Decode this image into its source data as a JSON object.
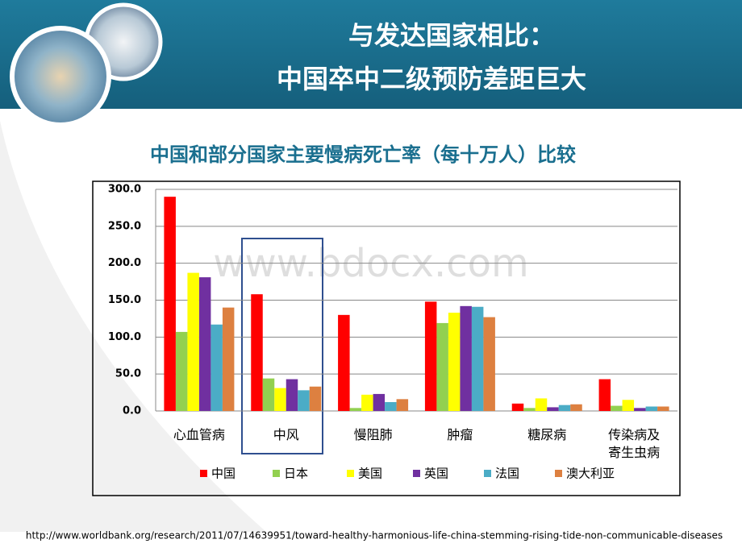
{
  "header": {
    "title_line1": "与发达国家相比：",
    "title_line2": "中国卒中二级预防差距巨大"
  },
  "watermark": "www.bdocx.com",
  "chart_data": {
    "type": "bar",
    "title": "中国和部分国家主要慢病死亡率（每十万人）比较",
    "categories": [
      "心血管病",
      "中风",
      "慢阻肺",
      "肿瘤",
      "糖尿病",
      "传染病及寄生虫病"
    ],
    "series": [
      {
        "name": "中国",
        "color": "#ff0000",
        "values": [
          290,
          158,
          130,
          148,
          10,
          43
        ]
      },
      {
        "name": "日本",
        "color": "#92d050",
        "values": [
          107,
          44,
          4,
          119,
          4,
          7
        ]
      },
      {
        "name": "美国",
        "color": "#ffff00",
        "values": [
          187,
          31,
          22,
          133,
          17,
          15
        ]
      },
      {
        "name": "英国",
        "color": "#7030a0",
        "values": [
          181,
          43,
          23,
          142,
          5,
          4
        ]
      },
      {
        "name": "法国",
        "color": "#4bacc6",
        "values": [
          117,
          28,
          12,
          141,
          8,
          6
        ]
      },
      {
        "name": "澳大利亚",
        "color": "#dd8040",
        "values": [
          140,
          33,
          16,
          127,
          9,
          6
        ]
      }
    ],
    "ylim": [
      0,
      300
    ],
    "yticks": [
      {
        "value": 0,
        "label": "0.0"
      },
      {
        "value": 50,
        "label": "50.0"
      },
      {
        "value": 100,
        "label": "100.0"
      },
      {
        "value": 150,
        "label": "150.0"
      },
      {
        "value": 200,
        "label": "200.0"
      },
      {
        "value": 250,
        "label": "250.0"
      },
      {
        "value": 300,
        "label": "300.0"
      }
    ],
    "grid": true,
    "legend": "bottom"
  },
  "footer_url": "http://www.worldbank.org/research/2011/07/14639951/toward-healthy-harmonious-life-china-stemming-rising-tide-non-communicable-diseases"
}
